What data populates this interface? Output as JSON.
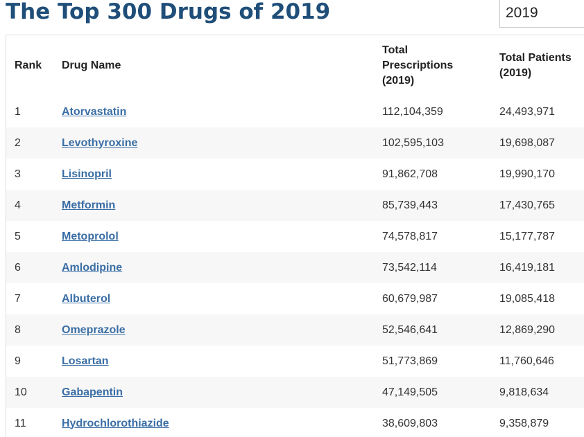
{
  "page": {
    "title": "The Top 300 Drugs of 2019",
    "year_select": "2019"
  },
  "table": {
    "headers": {
      "rank": "Rank",
      "drug_name": "Drug Name",
      "total_prescriptions": "Total Prescriptions (2019)",
      "total_patients": "Total Patients (2019)"
    },
    "rows": [
      {
        "rank": "1",
        "name": "Atorvastatin",
        "prescriptions": "112,104,359",
        "patients": "24,493,971"
      },
      {
        "rank": "2",
        "name": "Levothyroxine",
        "prescriptions": "102,595,103",
        "patients": "19,698,087"
      },
      {
        "rank": "3",
        "name": "Lisinopril",
        "prescriptions": "91,862,708",
        "patients": "19,990,170"
      },
      {
        "rank": "4",
        "name": "Metformin",
        "prescriptions": "85,739,443",
        "patients": "17,430,765"
      },
      {
        "rank": "5",
        "name": "Metoprolol",
        "prescriptions": "74,578,817",
        "patients": "15,177,787"
      },
      {
        "rank": "6",
        "name": "Amlodipine",
        "prescriptions": "73,542,114",
        "patients": "16,419,181"
      },
      {
        "rank": "7",
        "name": "Albuterol",
        "prescriptions": "60,679,987",
        "patients": "19,085,418"
      },
      {
        "rank": "8",
        "name": "Omeprazole",
        "prescriptions": "52,546,641",
        "patients": "12,869,290"
      },
      {
        "rank": "9",
        "name": "Losartan",
        "prescriptions": "51,773,869",
        "patients": "11,760,646"
      },
      {
        "rank": "10",
        "name": "Gabapentin",
        "prescriptions": "47,149,505",
        "patients": "9,818,634"
      },
      {
        "rank": "11",
        "name": "Hydrochlorothiazide",
        "prescriptions": "38,609,803",
        "patients": "9,358,879"
      }
    ]
  },
  "colors": {
    "title": "#1f4e79",
    "link": "#3a6ea5",
    "stripe": "#f7f7f7"
  }
}
